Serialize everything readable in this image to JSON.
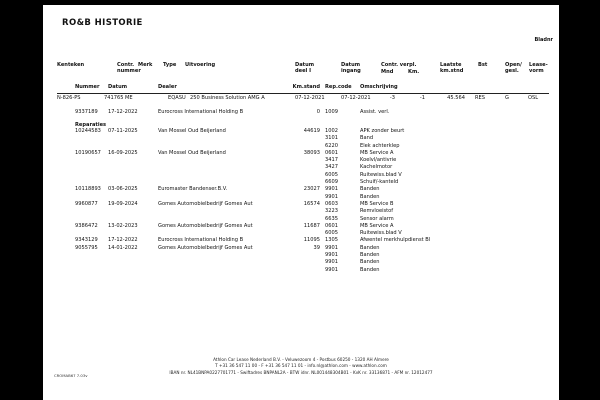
{
  "title": "RO&B HISTORIE",
  "bladnr_label": "Bladnr",
  "columns": {
    "kenteken": "Kenteken",
    "contr_nummer": "Contr.\nnummer",
    "merk": "Merk",
    "type": "Type",
    "uitvoering": "Uitvoering",
    "datum_deel1": "Datum\ndeel I",
    "datum_ingang": "Datum\ningang",
    "contr_verpl": "Contr. verpl.",
    "mnd": "Mnd",
    "km": "Km.",
    "laatste_kmstnd": "Laatste\nkm.stnd",
    "bst": "Bst",
    "open_gesl": "Open/\ngesl.",
    "leasevorm": "Lease-\nvorm",
    "nummer": "Nummer",
    "datum": "Datum",
    "dealer": "Dealer",
    "kmstand": "Km.stand",
    "repcode": "Rep.code",
    "omschrijving": "Omschrijving"
  },
  "vehicle": {
    "kenteken": "N-826-PS",
    "contr_nummer": "741765",
    "merk": "ME",
    "type": "EQASU",
    "uitvoering": "250 Business Solution AMG A",
    "datum_deel1": "07-12-2021",
    "datum_ingang": "07-12-2021",
    "contr_verpl_mnd": "-3",
    "contr_verpl_km": "-1",
    "laatste_kmstnd": "45.564",
    "bst": "RES",
    "open_gesl": "G",
    "leasevorm": "OSL"
  },
  "assist_row": {
    "nummer": "9337189",
    "datum": "17-12-2022",
    "dealer": "Eurocross International Holding B",
    "km": "0",
    "code": "1009",
    "descr": "Assist. verl."
  },
  "reparaties_label": "Reparaties",
  "repair_lines": [
    {
      "nummer": "10244583",
      "datum": "07-11-2025",
      "dealer": "Van Mossel Oud Beijerland",
      "km": "44619",
      "code": "1002",
      "descr": "APK zonder beurt"
    },
    {
      "code": "3101",
      "descr": "Band"
    },
    {
      "code": "6220",
      "descr": "Elek achterklep"
    },
    {
      "nummer": "10190657",
      "datum": "16-09-2025",
      "dealer": "Van Mossel Oud Beijerland",
      "km": "38093",
      "code": "0601",
      "descr": "MB Service A"
    },
    {
      "code": "3417",
      "descr": "Koelvl/antivrie"
    },
    {
      "code": "3427",
      "descr": "Kachelmotor"
    },
    {
      "code": "6005",
      "descr": "Ruitewiss.blad V"
    },
    {
      "code": "6609",
      "descr": "Schuif/-kanteld"
    },
    {
      "nummer": "10118893",
      "datum": "03-06-2025",
      "dealer": "Euromaster Bandenser.B.V.",
      "km": "23027",
      "code": "9901",
      "descr": "Banden"
    },
    {
      "code": "9901",
      "descr": "Banden"
    },
    {
      "nummer": "9960877",
      "datum": "19-09-2024",
      "dealer": "Gomes Automobielbedrijf Gomes Aut",
      "km": "16574",
      "code": "0603",
      "descr": "MB Service B"
    },
    {
      "code": "3223",
      "descr": "Remvloeistof"
    },
    {
      "code": "6635",
      "descr": "Sensor alarm"
    },
    {
      "nummer": "9386472",
      "datum": "13-02-2023",
      "dealer": "Gomes Automobielbedrijf Gomes Aut",
      "km": "11687",
      "code": "0601",
      "descr": "MB Service A"
    },
    {
      "code": "6005",
      "descr": "Ruitewiss.blad V"
    },
    {
      "nummer": "9343129",
      "datum": "17-12-2022",
      "dealer": "Eurocross International Holding B",
      "km": "11095",
      "code": "1305",
      "descr": "Afwentel merkhulpdienst Bl"
    },
    {
      "nummer": "9055795",
      "datum": "14-01-2022",
      "dealer": "Gomes Automobielbedrijf Gomes Aut",
      "km": "39",
      "code": "9901",
      "descr": "Banden"
    },
    {
      "code": "9901",
      "descr": "Banden"
    },
    {
      "code": "9901",
      "descr": "Banden"
    },
    {
      "code": "9901",
      "descr": "Banden"
    }
  ],
  "footer": {
    "line1": "Athlon Car Lease Nederland B.V. - Veluwezoom 4 - Postbus 60250 - 1320 AH  Almere",
    "line2": "T +31 36 547 11 00 - F +31 36 547 11 01 - info.nl@athlon.com - www.athlon.com",
    "line3": "IBAN nr. NL41BNPA0227701771 - Swiftadres BNPANL2A - BTW idnr. NL001448304B01 - KvK nr. 33136871 - AFM nr. 12012477",
    "version": "CROMAB67 7.03v"
  }
}
